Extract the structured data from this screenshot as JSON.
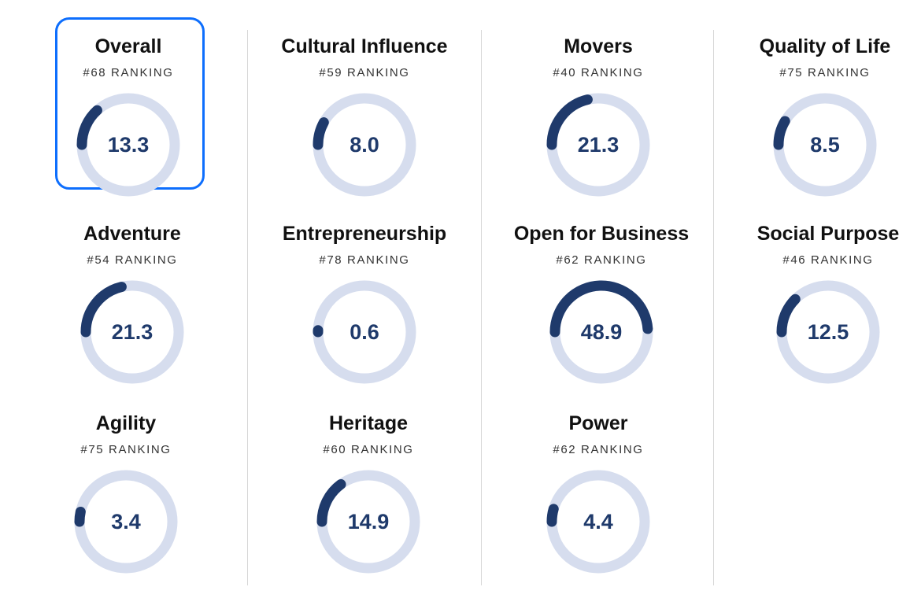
{
  "colors": {
    "track": "#d6ddee",
    "arc": "#1f3a6b",
    "value_text": "#1f3a6b",
    "selection_border": "#0d6efd",
    "divider": "#d7d7d7"
  },
  "columns": [
    [
      {
        "title": "Overall",
        "ranking": "#68 RANKING",
        "value": "13.3",
        "score": 13.3,
        "selected": true
      },
      {
        "title": "Adventure",
        "ranking": "#54 RANKING",
        "value": "21.3",
        "score": 21.3
      },
      {
        "title": "Agility",
        "ranking": "#75 RANKING",
        "value": "3.4",
        "score": 3.4
      }
    ],
    [
      {
        "title": "Cultural Influence",
        "ranking": "#59 RANKING",
        "value": "8.0",
        "score": 8.0
      },
      {
        "title": "Entrepreneurship",
        "ranking": "#78 RANKING",
        "value": "0.6",
        "score": 0.6
      },
      {
        "title": "Heritage",
        "ranking": "#60 RANKING",
        "value": "14.9",
        "score": 14.9
      }
    ],
    [
      {
        "title": "Movers",
        "ranking": "#40 RANKING",
        "value": "21.3",
        "score": 21.3
      },
      {
        "title": "Open for Business",
        "ranking": "#62 RANKING",
        "value": "48.9",
        "score": 48.9
      },
      {
        "title": "Power",
        "ranking": "#62 RANKING",
        "value": "4.4",
        "score": 4.4
      }
    ],
    [
      {
        "title": "Quality of Life",
        "ranking": "#75 RANKING",
        "value": "8.5",
        "score": 8.5
      },
      {
        "title": "Social Purpose",
        "ranking": "#46 RANKING",
        "value": "12.5",
        "score": 12.5
      }
    ]
  ]
}
